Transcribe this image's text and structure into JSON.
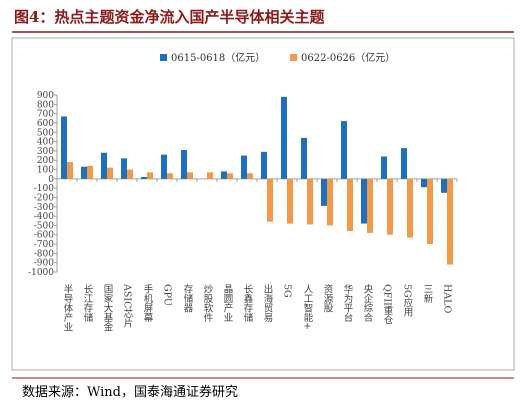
{
  "chart_data": {
    "type": "bar",
    "title": "图4：热点主题资金净流入国产半导体相关主题",
    "source": "数据来源：Wind，国泰海通证券研究",
    "categories": [
      "半导体产业",
      "长江存储",
      "国家大基金",
      "ASIC芯片",
      "手机屏幕",
      "GPU",
      "存储器",
      "炒股软件",
      "晶圆产业",
      "长鑫存储",
      "出海贸易",
      "5G",
      "人工智能+",
      "资源股",
      "华为平台",
      "央企综合",
      "QFII重仓",
      "5G应用",
      "三新",
      "HALO"
    ],
    "series": [
      {
        "name": "0615-0618（亿元）",
        "color": "#1f6fbf",
        "values": [
          670,
          130,
          280,
          220,
          20,
          260,
          310,
          0,
          80,
          250,
          290,
          880,
          440,
          -290,
          620,
          -480,
          240,
          330,
          -90,
          -150
        ]
      },
      {
        "name": "0622-0626（亿元）",
        "color": "#f39a4a",
        "values": [
          180,
          140,
          120,
          100,
          70,
          60,
          70,
          70,
          60,
          60,
          -460,
          -480,
          -490,
          -500,
          -560,
          -580,
          -600,
          -630,
          -700,
          -920
        ]
      }
    ],
    "ylim": [
      -1000,
      900
    ],
    "yticks": [
      -1000,
      -900,
      -800,
      -700,
      -600,
      -500,
      -400,
      -300,
      -200,
      -100,
      0,
      100,
      200,
      300,
      400,
      500,
      600,
      700,
      800,
      900
    ],
    "legend": "top"
  }
}
